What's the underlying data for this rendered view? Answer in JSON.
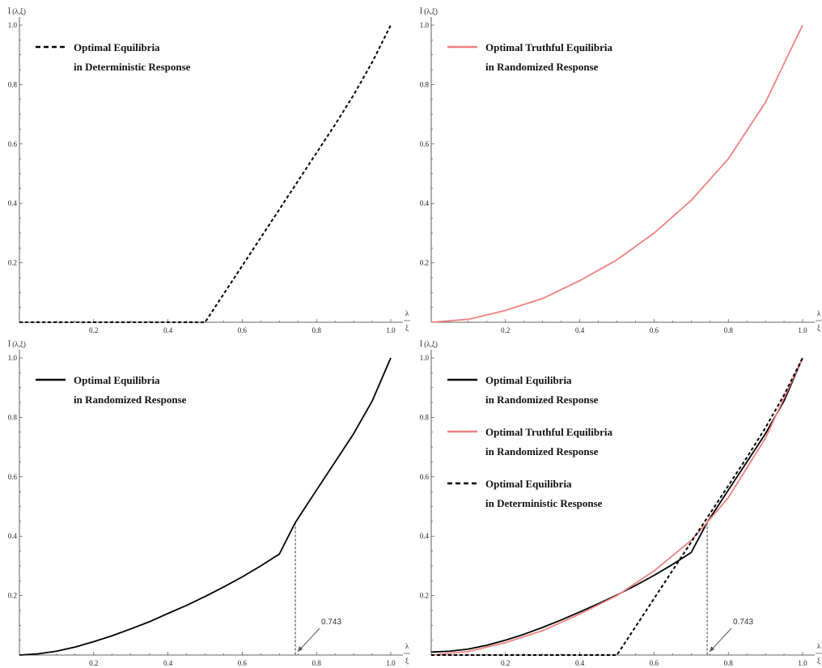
{
  "chart_data": [
    {
      "type": "line",
      "panel": "top-left",
      "ylabel": "Ī (λ,ξ)",
      "xlabel_num": "λ",
      "xlabel_den": "ξ",
      "xlim": [
        0,
        1
      ],
      "ylim": [
        0,
        1
      ],
      "xticks": [
        "0.2",
        "0.4",
        "0.6",
        "0.8",
        "1.0"
      ],
      "yticks": [
        "0.2",
        "0.4",
        "0.6",
        "0.8",
        "1.0"
      ],
      "legend_position": "top-left",
      "series": [
        {
          "name_lines": [
            "Optimal Equilibria",
            "in Deterministic Response"
          ],
          "color": "#000000",
          "style": "dashed",
          "x": [
            0,
            0.1,
            0.2,
            0.3,
            0.4,
            0.5,
            0.55,
            0.6,
            0.65,
            0.7,
            0.75,
            0.8,
            0.85,
            0.9,
            0.95,
            1.0
          ],
          "y": [
            0,
            0,
            0,
            0,
            0,
            0,
            0.095,
            0.19,
            0.285,
            0.38,
            0.475,
            0.57,
            0.665,
            0.765,
            0.875,
            1.0
          ]
        }
      ],
      "annotations": []
    },
    {
      "type": "line",
      "panel": "top-right",
      "ylabel": "Ī (λ,ξ)",
      "xlabel_num": "λ",
      "xlabel_den": "ξ",
      "xlim": [
        0,
        1
      ],
      "ylim": [
        0,
        1
      ],
      "xticks": [
        "0.2",
        "0.4",
        "0.6",
        "0.8",
        "1.0"
      ],
      "yticks": [
        "0.2",
        "0.4",
        "0.6",
        "0.8",
        "1.0"
      ],
      "legend_position": "top-left",
      "series": [
        {
          "name_lines": [
            "Optimal Truthful Equilibria",
            "in Randomized Response"
          ],
          "color": "#f08080",
          "style": "solid",
          "x": [
            0,
            0.1,
            0.2,
            0.3,
            0.4,
            0.5,
            0.6,
            0.7,
            0.8,
            0.9,
            1.0
          ],
          "y": [
            0,
            0.01,
            0.04,
            0.08,
            0.14,
            0.21,
            0.3,
            0.41,
            0.55,
            0.74,
            1.0
          ]
        }
      ],
      "annotations": []
    },
    {
      "type": "line",
      "panel": "bottom-left",
      "ylabel": "Ī (λ,ξ)",
      "xlabel_num": "λ",
      "xlabel_den": "ξ",
      "xlim": [
        0,
        1
      ],
      "ylim": [
        0,
        1
      ],
      "xticks": [
        "0.2",
        "0.4",
        "0.6",
        "0.8",
        "1.0"
      ],
      "yticks": [
        "0.2",
        "0.4",
        "0.6",
        "0.8",
        "1.0"
      ],
      "legend_position": "top-left",
      "series": [
        {
          "name_lines": [
            "Optimal Equilibria",
            "in Randomized Response"
          ],
          "color": "#000000",
          "style": "solid",
          "x": [
            0,
            0.05,
            0.1,
            0.15,
            0.2,
            0.25,
            0.3,
            0.35,
            0.4,
            0.45,
            0.5,
            0.55,
            0.6,
            0.65,
            0.7,
            0.743,
            0.8,
            0.85,
            0.9,
            0.95,
            1.0
          ],
          "y": [
            0,
            0.004,
            0.013,
            0.027,
            0.045,
            0.065,
            0.088,
            0.112,
            0.14,
            0.167,
            0.197,
            0.229,
            0.263,
            0.3,
            0.34,
            0.446,
            0.555,
            0.65,
            0.745,
            0.855,
            1.0
          ]
        }
      ],
      "annotations": [
        {
          "text": "0.743",
          "x": 0.743,
          "y": 0.446,
          "dropline": true
        }
      ]
    },
    {
      "type": "line",
      "panel": "bottom-right",
      "ylabel": "Ī (λ,ξ)",
      "xlabel_num": "λ",
      "xlabel_den": "ξ",
      "xlim": [
        0,
        1
      ],
      "ylim": [
        0,
        1
      ],
      "xticks": [
        "0.2",
        "0.4",
        "0.6",
        "0.8",
        "1.0"
      ],
      "yticks": [
        "0.2",
        "0.4",
        "0.6",
        "0.8",
        "1.0"
      ],
      "legend_position": "top-left",
      "series": [
        {
          "name_lines": [
            "Optimal Equilibria",
            "in Randomized Response"
          ],
          "color": "#000000",
          "style": "solid",
          "x": [
            0,
            0.05,
            0.1,
            0.15,
            0.2,
            0.25,
            0.3,
            0.35,
            0.4,
            0.45,
            0.5,
            0.55,
            0.6,
            0.65,
            0.7,
            0.743,
            0.8,
            0.85,
            0.9,
            0.95,
            1.0
          ],
          "y": [
            0.01,
            0.013,
            0.02,
            0.033,
            0.05,
            0.07,
            0.093,
            0.118,
            0.145,
            0.173,
            0.202,
            0.234,
            0.268,
            0.305,
            0.345,
            0.446,
            0.555,
            0.65,
            0.745,
            0.855,
            1.0
          ]
        },
        {
          "name_lines": [
            "Optimal Truthful Equilibria",
            "in Randomized Response"
          ],
          "color": "#f08080",
          "style": "solid",
          "x": [
            0,
            0.1,
            0.2,
            0.3,
            0.4,
            0.5,
            0.6,
            0.7,
            0.743,
            0.8,
            0.9,
            1.0
          ],
          "y": [
            0,
            0.012,
            0.042,
            0.082,
            0.138,
            0.2,
            0.283,
            0.386,
            0.446,
            0.53,
            0.73,
            1.0
          ]
        },
        {
          "name_lines": [
            "Optimal Equilibria",
            "in Deterministic Response"
          ],
          "color": "#000000",
          "style": "dashed",
          "x": [
            0,
            0.1,
            0.2,
            0.3,
            0.4,
            0.5,
            0.55,
            0.6,
            0.65,
            0.7,
            0.75,
            0.8,
            0.85,
            0.9,
            0.95,
            1.0
          ],
          "y": [
            0,
            0,
            0,
            0,
            0,
            0,
            0.095,
            0.19,
            0.285,
            0.38,
            0.475,
            0.57,
            0.665,
            0.765,
            0.875,
            1.0
          ]
        }
      ],
      "annotations": [
        {
          "text": "0.743",
          "x": 0.743,
          "y": 0.446,
          "dropline": true
        }
      ]
    }
  ]
}
